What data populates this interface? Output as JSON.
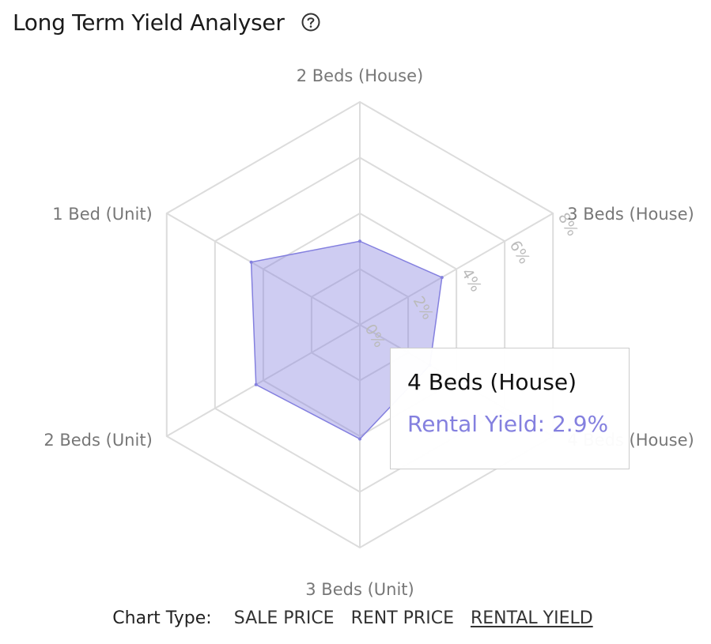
{
  "header": {
    "title": "Long Term Yield Analyser",
    "help_icon": "help-circle-icon"
  },
  "chart_data": {
    "type": "radar",
    "categories": [
      "2 Beds (House)",
      "3 Beds (House)",
      "4 Beds (House)",
      "3 Beds (Unit)",
      "2 Beds (Unit)",
      "1 Bed (Unit)"
    ],
    "series": [
      {
        "values": [
          3.0,
          3.4,
          2.9,
          4.1,
          4.3,
          4.5
        ],
        "color": "#8480df"
      }
    ],
    "radial_ticks": [
      0,
      2,
      4,
      6,
      8
    ],
    "radial_tick_labels": [
      "0%",
      "2%",
      "4%",
      "6%",
      "8%"
    ],
    "range": [
      0,
      8
    ],
    "grid": true
  },
  "tooltip": {
    "title": "4 Beds (House)",
    "value": "Rental Yield: 2.9%"
  },
  "chart_type": {
    "label": "Chart Type:",
    "options": [
      "SALE PRICE",
      "RENT PRICE",
      "RENTAL YIELD"
    ],
    "active": "RENTAL YIELD"
  }
}
